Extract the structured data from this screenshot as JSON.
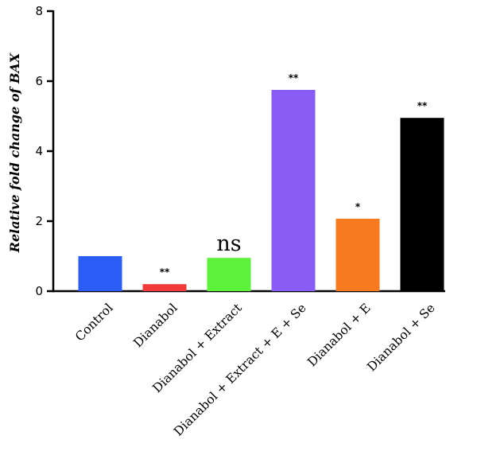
{
  "chart_data": {
    "type": "bar",
    "title": "",
    "xlabel": "",
    "ylabel": "Relative fold change of BAX",
    "ylim": [
      0,
      8
    ],
    "yticks": [
      0,
      2,
      4,
      6,
      8
    ],
    "grid": false,
    "categories": [
      "Control",
      "Dianabol",
      "Dianabol + Extract",
      "Dianabol + Extract + E + Se",
      "Dianabol + E",
      "Dianabol + Se"
    ],
    "values": [
      1.0,
      0.2,
      0.95,
      5.75,
      2.07,
      4.95
    ],
    "colors": [
      "#2c5cf6",
      "#f03a3a",
      "#5cf23a",
      "#8a5cf6",
      "#f77a1f",
      "#000000"
    ],
    "annotations": [
      "",
      "**",
      "ns",
      "**",
      "*",
      "**"
    ]
  }
}
